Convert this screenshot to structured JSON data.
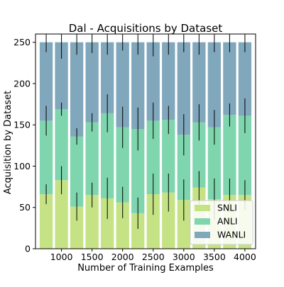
{
  "chart_data": {
    "type": "bar",
    "stacked": true,
    "title": "Dal - Acquisitions by Dataset",
    "xlabel": "Number of Training Examples",
    "ylabel": "Acquisition by Dataset",
    "x": [
      750,
      1000,
      1250,
      1500,
      1750,
      2000,
      2250,
      2500,
      2750,
      3000,
      3250,
      3500,
      3750,
      4000
    ],
    "xticks": [
      1000,
      1500,
      2000,
      2500,
      3000,
      3500,
      4000
    ],
    "xlim": [
      575,
      4175
    ],
    "ylim": [
      0,
      260
    ],
    "yticks": [
      0,
      50,
      100,
      150,
      200,
      250
    ],
    "legend_position": "lower-right",
    "grid": false,
    "series": [
      {
        "name": "SNLI",
        "color": "#c5e384",
        "values": [
          66,
          83,
          51,
          65,
          61,
          56,
          43,
          66,
          68,
          59,
          74,
          60,
          65,
          65
        ],
        "errors": [
          12,
          17,
          17,
          15,
          25,
          19,
          19,
          25,
          23,
          25,
          20,
          25,
          20,
          18
        ]
      },
      {
        "name": "ANLI",
        "color": "#7fd5ad",
        "values": [
          89,
          86,
          85,
          88,
          103,
          91,
          102,
          89,
          88,
          79,
          79,
          87,
          97,
          96
        ],
        "errors": [
          18,
          8,
          10,
          11,
          23,
          25,
          26,
          22,
          17,
          25,
          22,
          21,
          14,
          21
        ]
      },
      {
        "name": "WANLI",
        "color": "#80a7bc",
        "values": [
          95,
          81,
          114,
          97,
          86,
          103,
          105,
          95,
          94,
          112,
          97,
          103,
          88,
          89
        ],
        "errors": [
          12,
          20,
          15,
          13,
          15,
          10,
          15,
          17,
          15,
          12,
          15,
          12,
          12,
          12
        ]
      }
    ]
  }
}
